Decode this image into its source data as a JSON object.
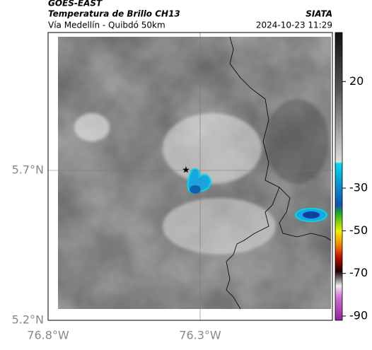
{
  "header": {
    "satellite": "GOES-EAST",
    "product": "Temperatura de Brillo CH13",
    "route": "Vía Medellín - Quibdó 50km",
    "source": "SIATA",
    "timestamp": "2024-10-23 11:29"
  },
  "map": {
    "lat_labels": [
      "5.7°N",
      "5.2°N"
    ],
    "lon_labels": [
      "76.8°W",
      "76.3°W"
    ]
  },
  "colorbar": {
    "lim": [
      -92,
      43
    ],
    "ticks": [
      20,
      -30,
      -50,
      -70,
      -90
    ]
  }
}
